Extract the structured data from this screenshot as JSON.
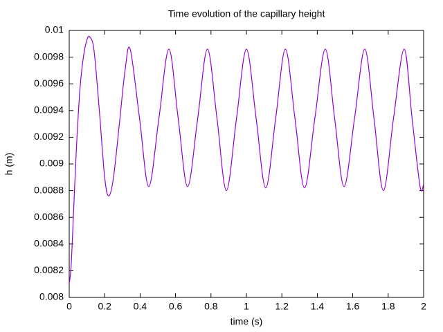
{
  "chart_data": {
    "type": "line",
    "title": "Time evolution of the capillary height",
    "xlabel": "time (s)",
    "ylabel": "h (m)",
    "x": [
      0,
      0.01,
      0.02,
      0.04,
      0.06,
      0.08,
      0.1,
      0.117,
      0.14,
      0.17,
      0.2,
      0.223,
      0.25,
      0.283,
      0.315,
      0.344,
      0.397,
      0.449,
      0.506,
      0.5625,
      0.615,
      0.668,
      0.725,
      0.78,
      0.834,
      0.887,
      0.944,
      1.0,
      1.055,
      1.109,
      1.165,
      1.22,
      1.274,
      1.328,
      1.386,
      1.445,
      1.498,
      1.551,
      1.61,
      1.668,
      1.72,
      1.773,
      1.83,
      1.89,
      1.935,
      1.98,
      2.0
    ],
    "series": [
      {
        "color": "#9400d3",
        "values": [
          0.0081,
          0.00822,
          0.0085,
          0.0091,
          0.00955,
          0.0098,
          0.00993,
          0.00995,
          0.00985,
          0.0094,
          0.0089,
          0.00876,
          0.0089,
          0.0093,
          0.0097,
          0.00986,
          0.00934,
          0.00883,
          0.00934,
          0.00986,
          0.00934,
          0.00883,
          0.00934,
          0.00986,
          0.00934,
          0.0088,
          0.00934,
          0.00986,
          0.00934,
          0.00882,
          0.00934,
          0.00986,
          0.00934,
          0.00882,
          0.00934,
          0.00986,
          0.00934,
          0.00883,
          0.00934,
          0.00986,
          0.00934,
          0.0088,
          0.00934,
          0.00986,
          0.00934,
          0.00883,
          0.00885
        ]
      }
    ],
    "xlim": [
      0,
      2
    ],
    "xticks": [
      0,
      0.2,
      0.4,
      0.6,
      0.8,
      1,
      1.2,
      1.4,
      1.6,
      1.8,
      2
    ],
    "ylim": [
      0.008,
      0.01
    ],
    "yticks": [
      0.008,
      0.0082,
      0.0084,
      0.0086,
      0.0088,
      0.009,
      0.0092,
      0.0094,
      0.0096,
      0.0098,
      0.01
    ],
    "grid": false
  }
}
